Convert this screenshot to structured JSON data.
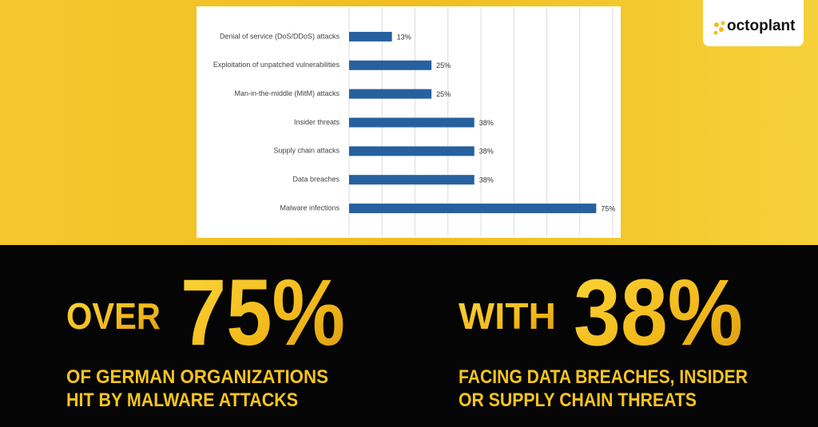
{
  "chart_data": {
    "type": "bar",
    "orientation": "horizontal",
    "categories": [
      "Denial of service (DoS/DDoS) attacks",
      "Exploitation of unpatched vulnerabilities",
      "Man-in-the-middle (MitM) attacks",
      "Insider threats",
      "Supply chain attacks",
      "Data breaches",
      "Malware infections"
    ],
    "values": [
      13,
      25,
      25,
      38,
      38,
      38,
      75
    ],
    "value_labels": [
      "13%",
      "25%",
      "25%",
      "38%",
      "38%",
      "38%",
      "75%"
    ],
    "color": "#27609f",
    "xlim": [
      0,
      80
    ],
    "xticks": [
      0,
      10,
      20,
      30,
      40,
      50,
      60,
      70,
      80
    ],
    "grid": true
  },
  "logo": "octoplant",
  "stats": [
    {
      "lead": "OVER",
      "figure": "75%",
      "lines": [
        "OF GERMAN ORGANIZATIONS",
        "HIT BY MALWARE ATTACKS"
      ]
    },
    {
      "lead": "WITH",
      "figure": "38%",
      "lines": [
        "FACING DATA BREACHES, INSIDER",
        "OR SUPPLY CHAIN THREATS"
      ]
    }
  ]
}
